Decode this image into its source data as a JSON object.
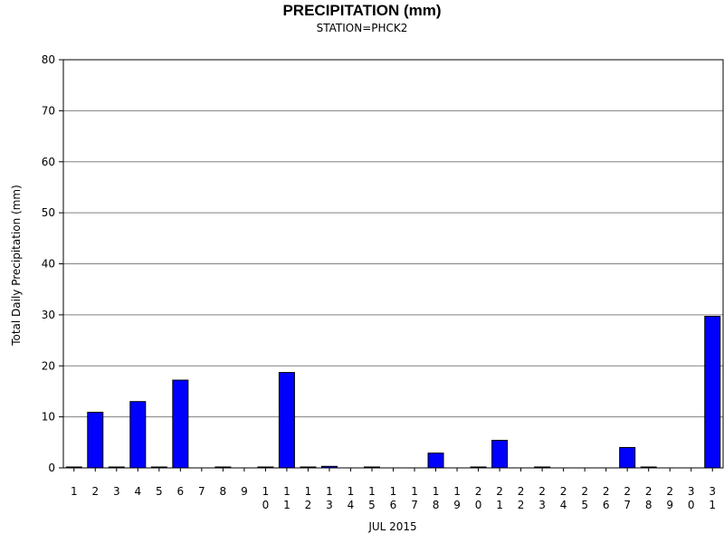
{
  "chart_data": {
    "type": "bar",
    "title": "PRECIPITATION (mm)",
    "subtitle": "STATION=PHCK2",
    "ylabel": "Total Daily Precipitation (mm)",
    "xlabel": "JUL 2015",
    "ylim": [
      0,
      80
    ],
    "yticks": [
      0,
      10,
      20,
      30,
      40,
      50,
      60,
      70,
      80
    ],
    "grid": true,
    "bar_color": "#0000ff",
    "categories": [
      "1",
      "2",
      "3",
      "4",
      "5",
      "6",
      "7",
      "8",
      "9",
      "10",
      "11",
      "12",
      "13",
      "14",
      "15",
      "16",
      "17",
      "18",
      "19",
      "20",
      "21",
      "22",
      "23",
      "24",
      "25",
      "26",
      "27",
      "28",
      "29",
      "30",
      "31"
    ],
    "values": [
      0.1,
      10.9,
      0.1,
      13.0,
      0.1,
      17.2,
      0,
      0.1,
      0,
      0.1,
      18.7,
      0.1,
      0.3,
      0,
      0.1,
      0,
      0,
      2.9,
      0,
      0.1,
      5.4,
      0,
      0.1,
      0,
      0,
      0,
      4.0,
      0.1,
      0,
      0,
      29.7
    ]
  }
}
